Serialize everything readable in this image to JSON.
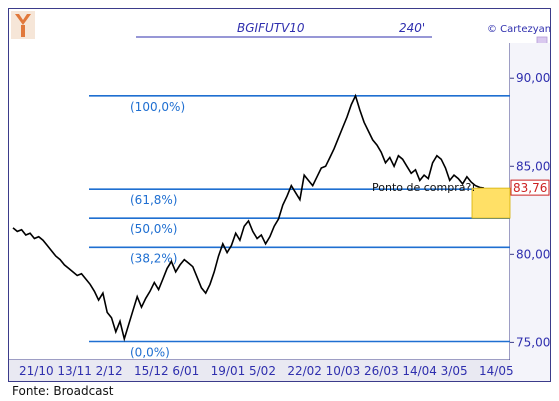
{
  "chart_data": {
    "type": "line",
    "title": "BGIFUTV10",
    "timeframe": "240'",
    "watermark": "© Cartezyan",
    "source": "Fonte: Broadcast",
    "ylim": [
      74,
      92
    ],
    "y_ticks": [
      "75,00",
      "80,00",
      "85,00",
      "90,00"
    ],
    "y_tick_values": [
      75,
      80,
      85,
      90
    ],
    "x_tick_labels": [
      "21/10",
      "13/11",
      "2/12",
      "15/12",
      "6/01",
      "19/01",
      "5/02",
      "22/02",
      "10/03",
      "26/03",
      "14/04",
      "3/05",
      "14/05"
    ],
    "last_price_label": "83,76",
    "last_price": 83.76,
    "annotation": "Ponto de compra?!",
    "fib_levels": [
      {
        "label": "(100,0%)",
        "price": 89.0
      },
      {
        "label": "(61,8%)",
        "price": 83.7
      },
      {
        "label": "(50,0%)",
        "price": 82.05
      },
      {
        "label": "(38,2%)",
        "price": 80.4
      },
      {
        "label": "(0,0%)",
        "price": 75.05
      }
    ],
    "series": [
      {
        "values": [
          81.5,
          81.3,
          81.4,
          81.1,
          81.2,
          80.9,
          81.0,
          80.8,
          80.5,
          80.2,
          79.9,
          79.7,
          79.4,
          79.2,
          79.0,
          78.8,
          78.9,
          78.6,
          78.3,
          77.9,
          77.4,
          77.8,
          76.7,
          76.4,
          75.6,
          76.2,
          75.2,
          76.0,
          76.8,
          77.6,
          77.0,
          77.5,
          77.9,
          78.4,
          78.0,
          78.6,
          79.2,
          79.6,
          79.0,
          79.4,
          79.7,
          79.5,
          79.3,
          78.7,
          78.1,
          77.8,
          78.3,
          79.0,
          79.9,
          80.6,
          80.1,
          80.5,
          81.2,
          80.8,
          81.6,
          81.9,
          81.3,
          80.9,
          81.1,
          80.6,
          81.0,
          81.6,
          82.0,
          82.8,
          83.3,
          83.9,
          83.5,
          83.1,
          84.5,
          84.2,
          83.9,
          84.4,
          84.9,
          85.0,
          85.5,
          86.0,
          86.6,
          87.2,
          87.8,
          88.5,
          89.0,
          88.2,
          87.5,
          87.0,
          86.5,
          86.2,
          85.8,
          85.2,
          85.5,
          85.0,
          85.6,
          85.4,
          85.0,
          84.6,
          84.8,
          84.2,
          84.5,
          84.3,
          85.2,
          85.6,
          85.4,
          84.9,
          84.2,
          84.5,
          84.3,
          84.0,
          84.4,
          84.1,
          83.9,
          83.8,
          83.76
        ]
      }
    ]
  }
}
